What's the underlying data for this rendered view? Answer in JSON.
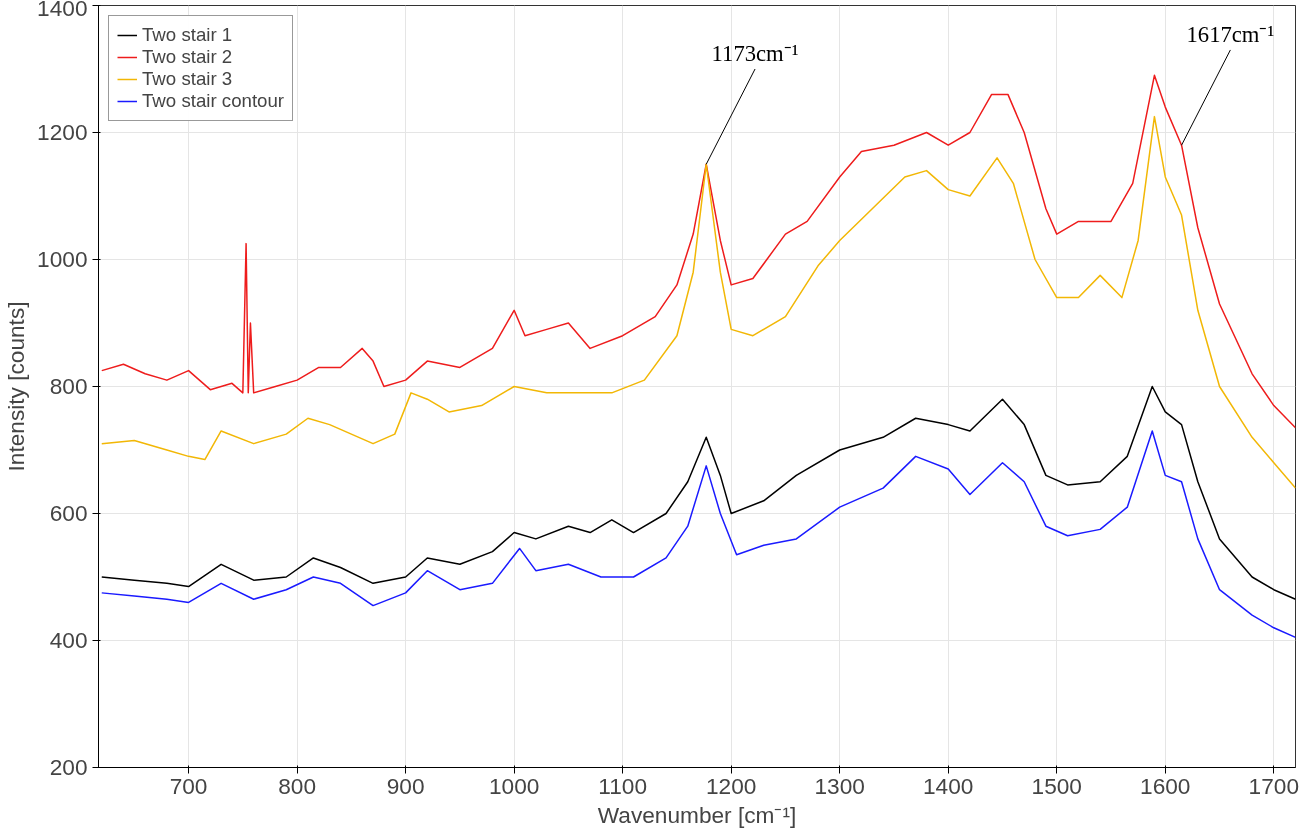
{
  "chart_data": {
    "type": "line",
    "xlabel": "Wavenumber [cm⁻¹]",
    "ylabel": "Intensity [counts]",
    "xlim": [
      617,
      1720
    ],
    "ylim": [
      200,
      1400
    ],
    "xticks": [
      700,
      800,
      900,
      1000,
      1100,
      1200,
      1300,
      1400,
      1500,
      1600,
      1700
    ],
    "yticks": [
      200,
      400,
      600,
      800,
      1000,
      1200,
      1400
    ],
    "grid": true,
    "legend": "top left",
    "line_style": "solid",
    "marker": "none",
    "annotations": [
      {
        "text": "1173cm⁻¹",
        "x": 1177,
        "y": 1150
      },
      {
        "text": "1617cm⁻¹",
        "x": 1615,
        "y": 1180
      }
    ],
    "series": [
      {
        "name": "Two stair 1",
        "color": "#000000",
        "x": [
          620,
          650,
          680,
          700,
          730,
          760,
          790,
          815,
          840,
          870,
          900,
          920,
          950,
          980,
          1000,
          1020,
          1050,
          1070,
          1090,
          1110,
          1140,
          1160,
          1177,
          1190,
          1200,
          1230,
          1260,
          1300,
          1340,
          1370,
          1400,
          1420,
          1450,
          1470,
          1490,
          1510,
          1540,
          1565,
          1588,
          1600,
          1615,
          1630,
          1650,
          1680,
          1700,
          1720
        ],
        "values": [
          500,
          495,
          490,
          485,
          520,
          495,
          500,
          530,
          515,
          490,
          500,
          530,
          520,
          540,
          570,
          560,
          580,
          570,
          590,
          570,
          600,
          650,
          720,
          660,
          600,
          620,
          660,
          700,
          720,
          750,
          740,
          730,
          780,
          740,
          660,
          645,
          650,
          690,
          800,
          760,
          740,
          650,
          560,
          500,
          480,
          465
        ]
      },
      {
        "name": "Two stair 2",
        "color": "#ee1c1c",
        "x": [
          620,
          640,
          660,
          680,
          700,
          720,
          740,
          750,
          753,
          755,
          757,
          760,
          780,
          800,
          820,
          840,
          860,
          870,
          880,
          900,
          920,
          950,
          980,
          1000,
          1010,
          1030,
          1050,
          1070,
          1100,
          1130,
          1150,
          1165,
          1177,
          1190,
          1200,
          1220,
          1250,
          1270,
          1300,
          1320,
          1350,
          1380,
          1400,
          1420,
          1440,
          1455,
          1470,
          1490,
          1500,
          1520,
          1550,
          1570,
          1590,
          1600,
          1615,
          1630,
          1650,
          1680,
          1700,
          1720
        ],
        "values": [
          825,
          835,
          820,
          810,
          825,
          795,
          805,
          790,
          1025,
          790,
          900,
          790,
          800,
          810,
          830,
          830,
          860,
          840,
          800,
          810,
          840,
          830,
          860,
          920,
          880,
          890,
          900,
          860,
          880,
          910,
          960,
          1040,
          1150,
          1030,
          960,
          970,
          1040,
          1060,
          1130,
          1170,
          1180,
          1200,
          1180,
          1200,
          1260,
          1260,
          1200,
          1080,
          1040,
          1060,
          1060,
          1120,
          1290,
          1240,
          1180,
          1050,
          930,
          820,
          770,
          735
        ]
      },
      {
        "name": "Two stair 3",
        "color": "#f2b705",
        "x": [
          620,
          650,
          680,
          700,
          715,
          730,
          760,
          790,
          810,
          830,
          870,
          890,
          905,
          920,
          940,
          970,
          1000,
          1030,
          1060,
          1090,
          1120,
          1150,
          1165,
          1177,
          1190,
          1200,
          1220,
          1250,
          1280,
          1300,
          1330,
          1360,
          1380,
          1400,
          1420,
          1445,
          1460,
          1480,
          1500,
          1520,
          1540,
          1560,
          1575,
          1590,
          1600,
          1615,
          1630,
          1650,
          1680,
          1700,
          1720
        ],
        "values": [
          710,
          715,
          700,
          690,
          685,
          730,
          710,
          725,
          750,
          740,
          710,
          725,
          790,
          780,
          760,
          770,
          800,
          790,
          790,
          790,
          810,
          880,
          980,
          1150,
          980,
          890,
          880,
          910,
          990,
          1030,
          1080,
          1130,
          1140,
          1110,
          1100,
          1160,
          1120,
          1000,
          940,
          940,
          975,
          940,
          1030,
          1225,
          1130,
          1070,
          920,
          800,
          720,
          680,
          640
        ]
      },
      {
        "name": "Two stair contour",
        "color": "#1a1aff",
        "x": [
          620,
          650,
          680,
          700,
          730,
          760,
          790,
          815,
          840,
          870,
          900,
          920,
          950,
          980,
          1005,
          1020,
          1050,
          1080,
          1110,
          1140,
          1160,
          1177,
          1190,
          1205,
          1230,
          1260,
          1300,
          1340,
          1370,
          1400,
          1420,
          1450,
          1470,
          1490,
          1510,
          1540,
          1565,
          1588,
          1600,
          1615,
          1630,
          1650,
          1680,
          1700,
          1720
        ],
        "values": [
          475,
          470,
          465,
          460,
          490,
          465,
          480,
          500,
          490,
          455,
          475,
          510,
          480,
          490,
          545,
          510,
          520,
          500,
          500,
          530,
          580,
          675,
          600,
          535,
          550,
          560,
          610,
          640,
          690,
          670,
          630,
          680,
          650,
          580,
          565,
          575,
          610,
          730,
          660,
          650,
          560,
          480,
          440,
          420,
          405
        ]
      }
    ]
  }
}
